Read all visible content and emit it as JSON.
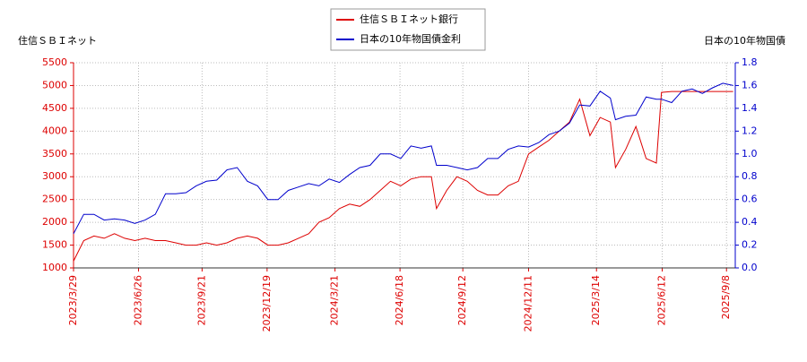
{
  "chart_data": {
    "type": "line",
    "ylabel": "住信ＳＢＩネット",
    "y2label": "日本の10年物国債",
    "x": [
      "2023/3/29",
      "2023/4/12",
      "2023/4/26",
      "2023/5/10",
      "2023/5/24",
      "2023/6/7",
      "2023/6/21",
      "2023/7/5",
      "2023/7/19",
      "2023/8/2",
      "2023/8/16",
      "2023/8/30",
      "2023/9/13",
      "2023/9/27",
      "2023/10/11",
      "2023/10/25",
      "2023/11/8",
      "2023/11/22",
      "2023/12/6",
      "2023/12/20",
      "2024/1/3",
      "2024/1/17",
      "2024/1/31",
      "2024/2/14",
      "2024/2/28",
      "2024/3/13",
      "2024/3/27",
      "2024/4/10",
      "2024/4/24",
      "2024/5/8",
      "2024/5/22",
      "2024/6/5",
      "2024/6/19",
      "2024/7/3",
      "2024/7/17",
      "2024/7/31",
      "2024/8/7",
      "2024/8/21",
      "2024/9/4",
      "2024/9/18",
      "2024/10/2",
      "2024/10/16",
      "2024/10/30",
      "2024/11/13",
      "2024/11/27",
      "2024/12/11",
      "2024/12/25",
      "2025/1/8",
      "2025/1/22",
      "2025/2/5",
      "2025/2/19",
      "2025/3/5",
      "2025/3/19",
      "2025/4/2",
      "2025/4/9",
      "2025/4/23",
      "2025/5/7",
      "2025/5/21",
      "2025/6/4",
      "2025/6/11",
      "2025/6/25",
      "2025/7/9",
      "2025/7/23",
      "2025/8/6",
      "2025/8/20",
      "2025/9/3",
      "2025/9/17"
    ],
    "series": [
      {
        "name": "住信ＳＢＩネット銀行",
        "color": "#dd0000",
        "axis": "y",
        "values": [
          1150,
          1600,
          1700,
          1650,
          1750,
          1650,
          1600,
          1650,
          1600,
          1600,
          1550,
          1500,
          1500,
          1550,
          1500,
          1550,
          1650,
          1700,
          1650,
          1500,
          1500,
          1550,
          1650,
          1750,
          2000,
          2100,
          2300,
          2400,
          2350,
          2500,
          2700,
          2900,
          2800,
          2950,
          3000,
          3000,
          2300,
          2700,
          3000,
          2900,
          2700,
          2600,
          2600,
          2800,
          2900,
          3500,
          3650,
          3800,
          4000,
          4200,
          4700,
          3900,
          4300,
          4200,
          3200,
          3600,
          4100,
          3400,
          3300,
          4850,
          4870,
          4870,
          4870,
          4870,
          4870,
          4870,
          4870
        ]
      },
      {
        "name": "日本の10年物国債金利",
        "color": "#0000cc",
        "axis": "y2",
        "values": [
          0.3,
          0.47,
          0.47,
          0.42,
          0.43,
          0.42,
          0.39,
          0.42,
          0.47,
          0.65,
          0.65,
          0.66,
          0.72,
          0.76,
          0.77,
          0.86,
          0.88,
          0.76,
          0.72,
          0.6,
          0.6,
          0.68,
          0.71,
          0.74,
          0.72,
          0.78,
          0.75,
          0.82,
          0.88,
          0.9,
          1.0,
          1.0,
          0.96,
          1.07,
          1.05,
          1.07,
          0.9,
          0.9,
          0.88,
          0.86,
          0.88,
          0.96,
          0.96,
          1.04,
          1.07,
          1.06,
          1.1,
          1.17,
          1.2,
          1.27,
          1.43,
          1.42,
          1.55,
          1.49,
          1.3,
          1.33,
          1.34,
          1.5,
          1.48,
          1.48,
          1.45,
          1.55,
          1.57,
          1.53,
          1.58,
          1.62,
          1.6
        ]
      }
    ],
    "xlim": [
      "2023/3/29",
      "2025/9/20"
    ],
    "xticks": [
      "2023/3/29",
      "2023/6/26",
      "2023/9/21",
      "2023/12/19",
      "2024/3/21",
      "2024/6/18",
      "2024/9/12",
      "2024/12/11",
      "2025/3/14",
      "2025/6/12",
      "2025/9/8"
    ],
    "ylim": [
      1000,
      5500
    ],
    "yticks": [
      1000,
      1500,
      2000,
      2500,
      3000,
      3500,
      4000,
      4500,
      5000,
      5500
    ],
    "y2lim": [
      0,
      1.8
    ],
    "y2ticks": [
      {
        "value": 0,
        "label": "0.0"
      },
      0.2,
      0.4,
      0.6,
      0.8,
      {
        "value": 1,
        "label": "1.0"
      },
      1.2,
      1.4,
      1.6,
      1.8
    ],
    "grid": true
  }
}
